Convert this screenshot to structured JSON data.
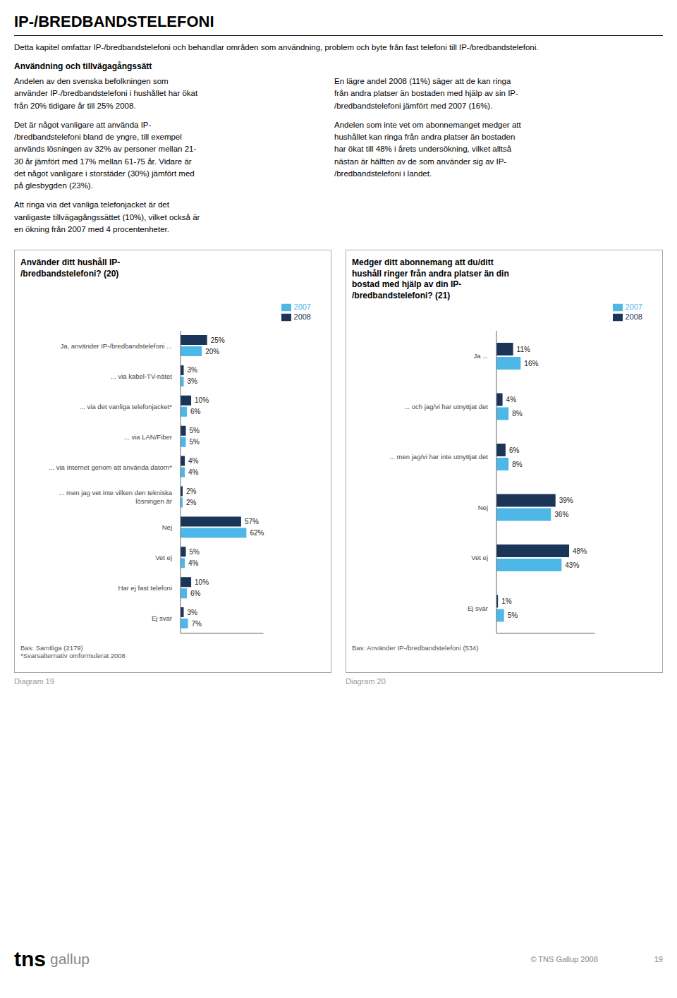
{
  "title": "IP-/BREDBANDSTELEFONI",
  "annotations": [
    "Detta kapitel omfattar IP-/bredbandstelefoni och behandlar områden som användning, problem och byte från fast telefoni till IP-/bredbandstelefoni.",
    "Användning och tillvägagångssätt",
    "Andelen av den svenska befolkningen som\nanvänder IP-/bredbandstelefoni i hushållet har ökat\nfrån 20% tidigare år till 25% 2008.",
    "En lägre andel 2008 (11%) säger att de kan ringa\nfrån andra platser än bostaden med hjälp av sin IP-\n/bredbandstelefoni jämfört med 2007 (16%).",
    "Det är något vanligare att använda IP-\n/bredbandstelefoni bland de yngre, till exempel\nanvänds lösningen av 32% av personer mellan 21-\n30 år jämfört med 17% mellan 61-75 år. Vidare är\ndet något vanligare i storstäder (30%) jämfört med\npå glesbygden (23%).",
    "Andelen som inte vet om abonnemanget medger att\nhushållet kan ringa från andra platser än bostaden\nhar ökat till 48% i årets undersökning, vilket alltså\nnästan är hälften av de som använder sig av IP-\n/bredbandstelefoni i landet.",
    "Att ringa via det vanliga telefonjacket är det\nvanligaste tillvägagångssättet (10%), vilket också är\nen ökning från 2007 med 4 procentenheter.",
    "tns",
    "gallup",
    "© TNS Gallup 2008",
    "19"
  ],
  "chart_data": [
    {
      "type": "bar",
      "orientation": "horizontal",
      "title": "Använder ditt hushåll IP-\n/bredbandstelefoni? (20)",
      "categories": [
        "Ja, använder IP-/bredbandstelefoni ...",
        "... via kabel-TV-nätet",
        "... via det vanliga telefonjacket*",
        "... via LAN/Fiber",
        "... via Internet genom att använda datorn*",
        "... men jag vet inte vilken den tekniska\nlösningen är",
        "Nej",
        "Vet ej",
        "Har ej fast telefoni",
        "Ej svar"
      ],
      "series": [
        {
          "name": "2008",
          "color": "#1a3558",
          "values": [
            25,
            3,
            10,
            5,
            4,
            2,
            57,
            5,
            10,
            3
          ],
          "value_labels": [
            "25%",
            "3%",
            "10%",
            "5%",
            "4%",
            "2%",
            "57%",
            "5%",
            "10%",
            "3%"
          ]
        },
        {
          "name": "2007",
          "color": "#4db8e8",
          "values": [
            20,
            3,
            6,
            5,
            4,
            2,
            62,
            4,
            6,
            7
          ],
          "value_labels": [
            "20%",
            "3%",
            "6%",
            "5%",
            "4%",
            "2%",
            "62%",
            "4%",
            "6%",
            "7%"
          ]
        }
      ],
      "xlim": [
        0,
        78
      ],
      "tick_labels": "y",
      "grid": false,
      "legend": "upper right",
      "data_labels": true,
      "annotations": [
        "Bas: Samtliga (2179)\n*Svarsalternativ omformulerat 2008",
        "Diagram 19"
      ]
    },
    {
      "type": "bar",
      "orientation": "horizontal",
      "title": "Medger ditt abonnemang att du/ditt\nhushåll ringer från andra platser än din\nbostad med hjälp av din IP-\n/bredbandstelefoni? (21)",
      "categories": [
        "Ja ...",
        "... och jag/vi har utnyttjat det",
        "... men jag/vi har inte utnyttjat det",
        "Nej",
        "Vet ej",
        "Ej svar"
      ],
      "series": [
        {
          "name": "2008",
          "color": "#1a3558",
          "values": [
            11,
            4,
            6,
            39,
            48,
            1
          ],
          "value_labels": [
            "11%",
            "4%",
            "6%",
            "39%",
            "48%",
            "1%"
          ]
        },
        {
          "name": "2007",
          "color": "#4db8e8",
          "values": [
            16,
            8,
            8,
            36,
            43,
            5
          ],
          "value_labels": [
            "16%",
            "8%",
            "8%",
            "36%",
            "43%",
            "5%"
          ]
        }
      ],
      "xlim": [
        0,
        65
      ],
      "tick_labels": "y",
      "grid": false,
      "legend": "upper right",
      "data_labels": true,
      "annotations": [
        "Bas: Använder IP-/bredbandstelefoni (534)",
        "Diagram 20"
      ]
    }
  ]
}
